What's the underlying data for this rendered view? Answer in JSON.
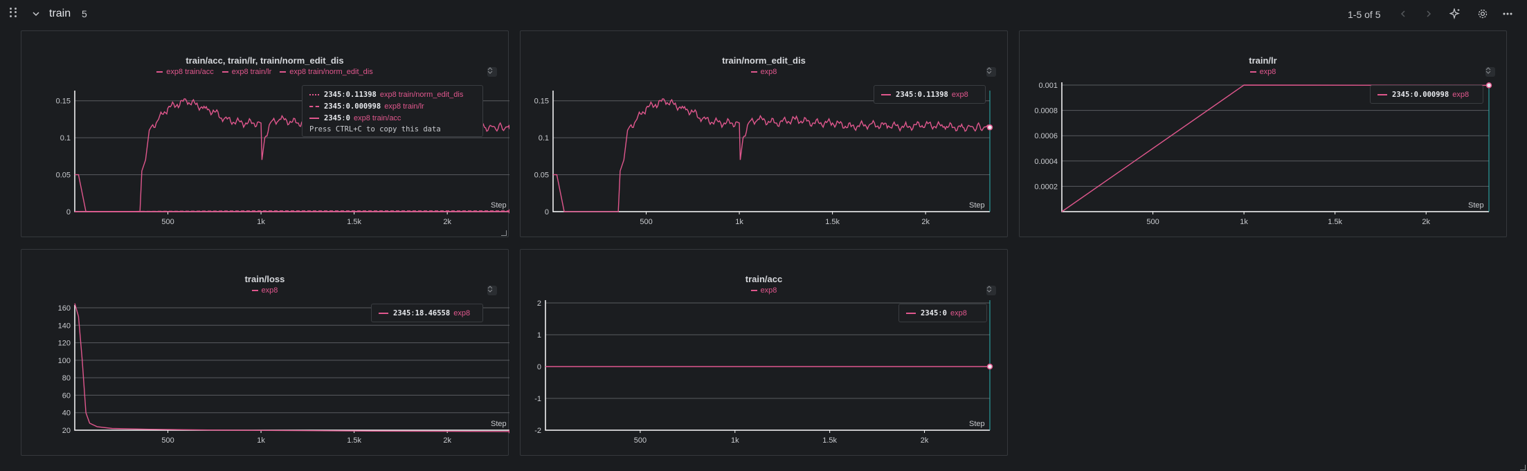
{
  "section": {
    "title": "train",
    "count": "5",
    "pager": "1-5 of 5"
  },
  "icons": {
    "drag": "drag-handle-icon",
    "collapse": "chevron-down-icon",
    "prev": "chevron-left-icon",
    "next": "chevron-right-icon",
    "sparkle": "sparkle-icon",
    "settings": "gear-icon",
    "more": "more-horizontal-icon"
  },
  "colors": {
    "series": "#e0578d",
    "axis": "#ffffff",
    "grid": "#5a5d61",
    "marker": "#2bb5b5"
  },
  "x_tick_labels": [
    "500",
    "1k",
    "1.5k",
    "2k"
  ],
  "step_label": "Step",
  "panels": [
    {
      "title": "train/acc, train/lr, train/norm_edit_dis",
      "legend": [
        "exp8 train/acc",
        "exp8 train/lr",
        "exp8 train/norm_edit_dis"
      ],
      "y_ticks": [
        "0.15",
        "0.1",
        "0.05",
        "0"
      ],
      "tooltip": {
        "rows": [
          {
            "step": "2345",
            "value": "0.11398",
            "label": "exp8 train/norm_edit_dis"
          },
          {
            "step": "2345",
            "value": "0.000998",
            "label": "exp8 train/lr"
          },
          {
            "step": "2345",
            "value": "0",
            "label": "exp8 train/acc"
          }
        ],
        "hint": "Press CTRL+C to copy this data"
      }
    },
    {
      "title": "train/norm_edit_dis",
      "legend": [
        "exp8"
      ],
      "y_ticks": [
        "0.15",
        "0.1",
        "0.05",
        "0"
      ],
      "tooltip": {
        "rows": [
          {
            "step": "2345",
            "value": "0.11398",
            "label": "exp8"
          }
        ]
      }
    },
    {
      "title": "train/lr",
      "legend": [
        "exp8"
      ],
      "y_ticks": [
        "0.001",
        "0.0008",
        "0.0006",
        "0.0004",
        "0.0002"
      ],
      "tooltip": {
        "rows": [
          {
            "step": "2345",
            "value": "0.000998",
            "label": "exp8"
          }
        ]
      }
    },
    {
      "title": "train/loss",
      "legend": [
        "exp8"
      ],
      "y_ticks": [
        "160",
        "140",
        "120",
        "100",
        "80",
        "60",
        "40",
        "20"
      ],
      "tooltip": {
        "rows": [
          {
            "step": "2345",
            "value": "18.46558",
            "label": "exp8"
          }
        ]
      }
    },
    {
      "title": "train/acc",
      "legend": [
        "exp8"
      ],
      "y_ticks": [
        "2",
        "1",
        "0",
        "-1",
        "-2"
      ],
      "tooltip": {
        "rows": [
          {
            "step": "2345",
            "value": "0",
            "label": "exp8"
          }
        ]
      }
    }
  ],
  "chart_data": [
    {
      "type": "line",
      "title": "train/acc, train/lr, train/norm_edit_dis",
      "xlabel": "Step",
      "xlim": [
        0,
        2345
      ],
      "ylim": [
        0,
        0.16
      ],
      "series": [
        {
          "name": "exp8 train/norm_edit_dis",
          "x": [
            0,
            20,
            60,
            300,
            350,
            360,
            380,
            400,
            450,
            500,
            550,
            600,
            650,
            700,
            750,
            800,
            900,
            1000,
            1005,
            1020,
            1050,
            1100,
            1200,
            1300,
            1400,
            1500,
            1600,
            1700,
            1800,
            1900,
            2000,
            2100,
            2200,
            2345
          ],
          "y": [
            0.05,
            0.05,
            0,
            0,
            0,
            0.055,
            0.07,
            0.11,
            0.125,
            0.14,
            0.145,
            0.15,
            0.145,
            0.14,
            0.135,
            0.125,
            0.12,
            0.12,
            0.07,
            0.1,
            0.12,
            0.125,
            0.12,
            0.125,
            0.12,
            0.12,
            0.115,
            0.118,
            0.116,
            0.115,
            0.118,
            0.115,
            0.114,
            0.11398
          ]
        },
        {
          "name": "exp8 train/lr",
          "x": [
            0,
            1000,
            2345
          ],
          "y": [
            0,
            0.001,
            0.000998
          ]
        },
        {
          "name": "exp8 train/acc",
          "x": [
            0,
            2345
          ],
          "y": [
            0,
            0
          ]
        }
      ]
    },
    {
      "type": "line",
      "title": "train/norm_edit_dis",
      "xlabel": "Step",
      "xlim": [
        0,
        2345
      ],
      "ylim": [
        0,
        0.16
      ],
      "series": [
        {
          "name": "exp8",
          "x": [
            0,
            20,
            60,
            300,
            350,
            360,
            380,
            400,
            450,
            500,
            550,
            600,
            650,
            700,
            750,
            800,
            900,
            1000,
            1005,
            1020,
            1050,
            1100,
            1200,
            1300,
            1400,
            1500,
            1600,
            1700,
            1800,
            1900,
            2000,
            2100,
            2200,
            2345
          ],
          "y": [
            0.05,
            0.05,
            0,
            0,
            0,
            0.055,
            0.07,
            0.11,
            0.125,
            0.14,
            0.145,
            0.15,
            0.145,
            0.14,
            0.135,
            0.125,
            0.12,
            0.12,
            0.07,
            0.1,
            0.12,
            0.125,
            0.12,
            0.125,
            0.12,
            0.12,
            0.115,
            0.118,
            0.116,
            0.115,
            0.118,
            0.115,
            0.114,
            0.11398
          ]
        }
      ]
    },
    {
      "type": "line",
      "title": "train/lr",
      "xlabel": "Step",
      "xlim": [
        0,
        2345
      ],
      "ylim": [
        0,
        0.001
      ],
      "series": [
        {
          "name": "exp8",
          "x": [
            0,
            1000,
            2345
          ],
          "y": [
            0,
            0.001,
            0.000998
          ]
        }
      ]
    },
    {
      "type": "line",
      "title": "train/loss",
      "xlabel": "Step",
      "xlim": [
        0,
        2345
      ],
      "ylim": [
        20,
        160
      ],
      "series": [
        {
          "name": "exp8",
          "x": [
            0,
            20,
            40,
            60,
            80,
            120,
            200,
            400,
            800,
            1200,
            1600,
            2000,
            2345
          ],
          "y": [
            165,
            150,
            100,
            40,
            28,
            24,
            22,
            21,
            20,
            19.5,
            19,
            18.7,
            18.46558
          ]
        }
      ]
    },
    {
      "type": "line",
      "title": "train/acc",
      "xlabel": "Step",
      "xlim": [
        0,
        2345
      ],
      "ylim": [
        -2,
        2
      ],
      "series": [
        {
          "name": "exp8",
          "x": [
            0,
            2345
          ],
          "y": [
            0,
            0
          ]
        }
      ]
    }
  ]
}
